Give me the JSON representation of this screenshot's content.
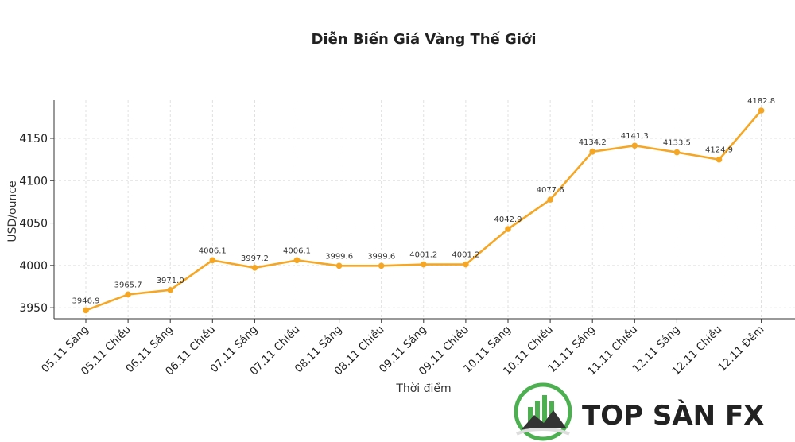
{
  "chart_data": {
    "type": "line",
    "title": "Diễn Biến Giá Vàng Thế Giới",
    "xlabel": "Thời điểm",
    "ylabel": "USD/ounce",
    "categories": [
      "05.11 Sáng",
      "05.11 Chiều",
      "06.11 Sáng",
      "06.11 Chiều",
      "07.11 Sáng",
      "07.11 Chiều",
      "08.11 Sáng",
      "08.11 Chiều",
      "09.11 Sáng",
      "09.11 Chiều",
      "10.11 Sáng",
      "10.11 Chiều",
      "11.11 Sáng",
      "11.11 Chiều",
      "12.11 Sáng",
      "12.11 Chiều",
      "12.11 Đêm"
    ],
    "series": [
      {
        "values": [
          3946.9,
          3965.7,
          3971.0,
          4006.1,
          3997.2,
          4006.1,
          3999.6,
          3999.6,
          4001.2,
          4001.2,
          4042.9,
          4077.6,
          4134.2,
          4141.3,
          4133.5,
          4124.9,
          4182.8
        ],
        "labels": [
          "3946.9",
          "3965.7",
          "3971.0",
          "4006.1",
          "3997.2",
          "4006.1",
          "3999.6",
          "3999.6",
          "4001.2",
          "4001.2",
          "4042.9",
          "4077.6",
          "4134.2",
          "4141.3",
          "4133.5",
          "4124.9",
          "4182.8"
        ],
        "color": "#f5a623"
      }
    ],
    "yticks": [
      3950,
      4000,
      4050,
      4100,
      4150
    ],
    "ylim": [
      3937,
      4195
    ],
    "grid": true,
    "legend": "none"
  },
  "watermark": {
    "text": "TOP SÀN FX",
    "colors": {
      "ring": "#4caf50",
      "text": "#222222"
    }
  }
}
